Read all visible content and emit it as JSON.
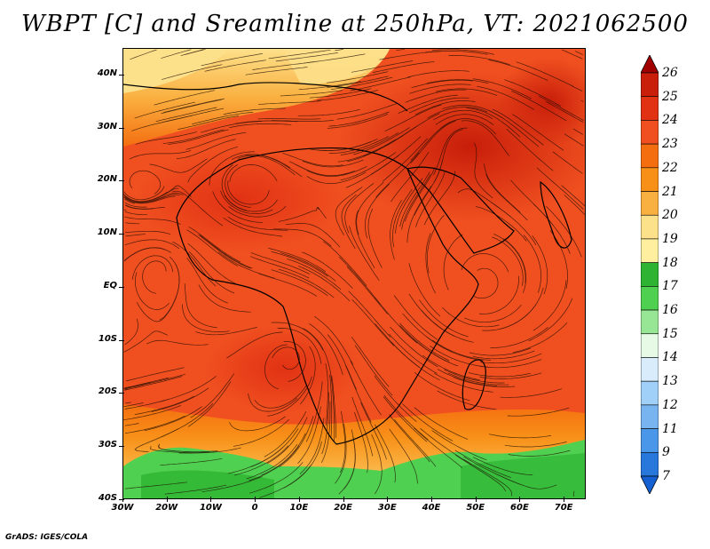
{
  "title": "WBPT [C] and Sreamline at 250hPa, VT: 2021062500",
  "credit": "GrADS: IGES/COLA",
  "map": {
    "lat_ticks": [
      "40N",
      "30N",
      "20N",
      "10N",
      "EQ",
      "10S",
      "20S",
      "30S",
      "40S"
    ],
    "lon_ticks": [
      "30W",
      "20W",
      "10W",
      "0",
      "10E",
      "20E",
      "30E",
      "40E",
      "50E",
      "60E",
      "70E"
    ],
    "lat_range": [
      -40,
      45
    ],
    "lon_range": [
      -30,
      75
    ]
  },
  "colorbar": {
    "levels": [
      "26",
      "25",
      "24",
      "23",
      "22",
      "21",
      "20",
      "19",
      "18",
      "17",
      "16",
      "15",
      "14",
      "13",
      "12",
      "11",
      "9",
      "7"
    ],
    "colors": [
      "#a00000",
      "#c81e0a",
      "#e13214",
      "#f05020",
      "#f46e10",
      "#f89018",
      "#fab040",
      "#fde08a",
      "#ffef9e",
      "#2eb432",
      "#50d050",
      "#96e696",
      "#e6fae6",
      "#d8ecfc",
      "#a0d0f8",
      "#78b4f0",
      "#4a96e8",
      "#2878dc",
      "#1460d2"
    ]
  }
}
